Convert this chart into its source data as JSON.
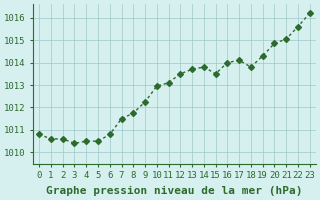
{
  "x": [
    0,
    1,
    2,
    3,
    4,
    5,
    6,
    7,
    8,
    9,
    10,
    11,
    12,
    13,
    14,
    15,
    16,
    17,
    18,
    19,
    20,
    21,
    22,
    23
  ],
  "y": [
    1010.8,
    1010.6,
    1010.6,
    1010.4,
    1010.5,
    1010.5,
    1010.8,
    1011.5,
    1011.75,
    1012.25,
    1012.95,
    1013.1,
    1013.5,
    1013.7,
    1013.8,
    1013.5,
    1014.0,
    1014.1,
    1013.8,
    1014.3,
    1014.85,
    1015.05,
    1015.6,
    1016.2
  ],
  "line_color": "#2d6a2d",
  "marker": "D",
  "marker_size": 3,
  "line_width": 1.0,
  "bg_color": "#d6f0f0",
  "grid_color": "#a0c8c8",
  "ylabel_ticks": [
    1010,
    1011,
    1012,
    1013,
    1014,
    1015,
    1016
  ],
  "xlabel_label": "Graphe pression niveau de la mer (hPa)",
  "xlabel_fontsize": 8,
  "tick_fontsize": 6.5,
  "ylim": [
    1009.5,
    1016.6
  ],
  "xlim": [
    -0.5,
    23.5
  ]
}
